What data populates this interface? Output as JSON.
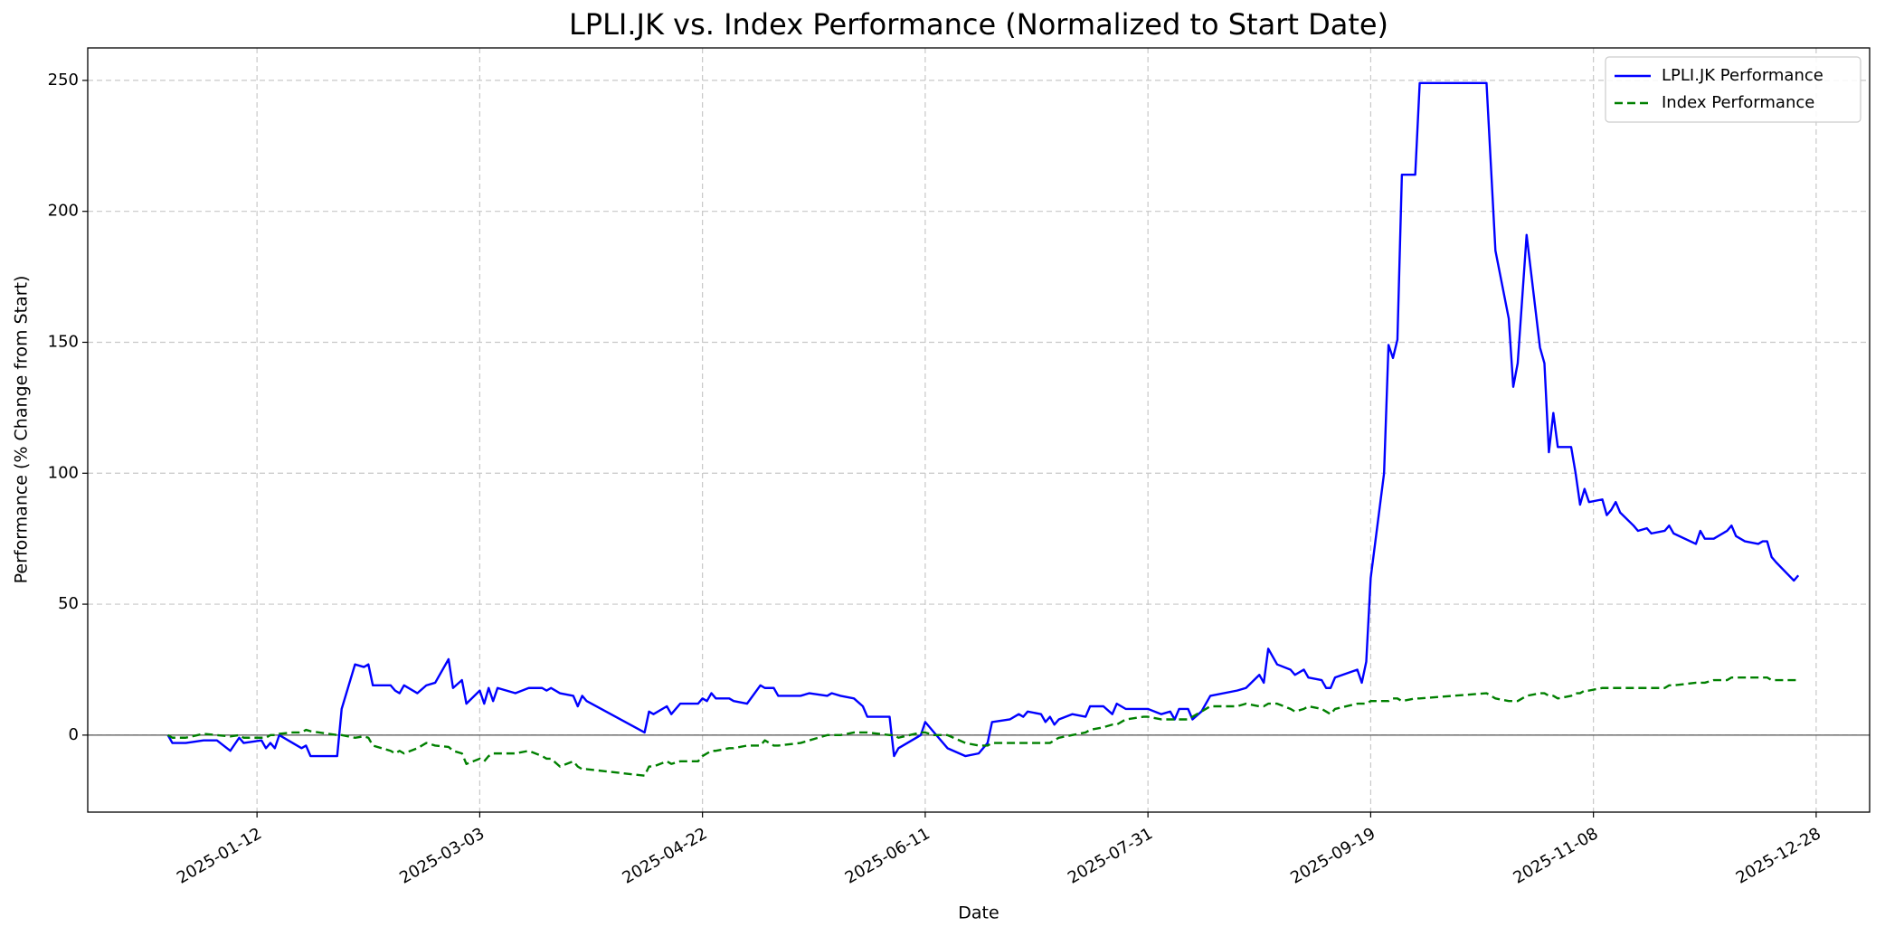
{
  "chart_data": {
    "type": "line",
    "title": "LPLI.JK vs. Index Performance (Normalized to Start Date)",
    "xlabel": "Date",
    "ylabel": "Performance (% Change from Start)",
    "x": [
      "2024-12-23",
      "2024-12-24",
      "2024-12-27",
      "2024-12-31",
      "2025-01-03",
      "2025-01-06",
      "2025-01-08",
      "2025-01-09",
      "2025-01-13",
      "2025-01-14",
      "2025-01-15",
      "2025-01-16",
      "2025-01-17",
      "2025-01-20",
      "2025-01-22",
      "2025-01-23",
      "2025-01-24",
      "2025-01-30",
      "2025-01-31",
      "2025-02-03",
      "2025-02-05",
      "2025-02-06",
      "2025-02-07",
      "2025-02-11",
      "2025-02-12",
      "2025-02-13",
      "2025-02-14",
      "2025-02-17",
      "2025-02-19",
      "2025-02-21",
      "2025-02-24",
      "2025-02-25",
      "2025-02-27",
      "2025-02-28",
      "2025-03-03",
      "2025-03-04",
      "2025-03-05",
      "2025-03-06",
      "2025-03-07",
      "2025-03-11",
      "2025-03-14",
      "2025-03-17",
      "2025-03-18",
      "2025-03-19",
      "2025-03-21",
      "2025-03-24",
      "2025-03-25",
      "2025-03-26",
      "2025-03-27",
      "2025-04-09",
      "2025-04-10",
      "2025-04-11",
      "2025-04-14",
      "2025-04-15",
      "2025-04-17",
      "2025-04-21",
      "2025-04-22",
      "2025-04-23",
      "2025-04-24",
      "2025-04-25",
      "2025-04-28",
      "2025-04-29",
      "2025-05-02",
      "2025-05-05",
      "2025-05-06",
      "2025-05-08",
      "2025-05-09",
      "2025-05-14",
      "2025-05-16",
      "2025-05-20",
      "2025-05-21",
      "2025-05-23",
      "2025-05-26",
      "2025-05-28",
      "2025-05-29",
      "2025-06-03",
      "2025-06-04",
      "2025-06-05",
      "2025-06-10",
      "2025-06-11",
      "2025-06-13",
      "2025-06-16",
      "2025-06-20",
      "2025-06-23",
      "2025-06-25",
      "2025-06-26",
      "2025-06-30",
      "2025-07-02",
      "2025-07-03",
      "2025-07-04",
      "2025-07-07",
      "2025-07-08",
      "2025-07-09",
      "2025-07-10",
      "2025-07-11",
      "2025-07-14",
      "2025-07-17",
      "2025-07-18",
      "2025-07-21",
      "2025-07-23",
      "2025-07-24",
      "2025-07-26",
      "2025-07-30",
      "2025-07-31",
      "2025-08-03",
      "2025-08-05",
      "2025-08-06",
      "2025-08-07",
      "2025-08-09",
      "2025-08-10",
      "2025-08-12",
      "2025-08-14",
      "2025-08-20",
      "2025-08-22",
      "2025-08-25",
      "2025-08-26",
      "2025-08-27",
      "2025-08-29",
      "2025-09-01",
      "2025-09-02",
      "2025-09-04",
      "2025-09-05",
      "2025-09-08",
      "2025-09-09",
      "2025-09-10",
      "2025-09-11",
      "2025-09-16",
      "2025-09-17",
      "2025-09-18",
      "2025-09-19",
      "2025-09-22",
      "2025-09-23",
      "2025-09-24",
      "2025-09-25",
      "2025-09-26",
      "2025-09-29",
      "2025-09-30",
      "2025-10-15",
      "2025-10-17",
      "2025-10-20",
      "2025-10-21",
      "2025-10-22",
      "2025-10-24",
      "2025-10-27",
      "2025-10-28",
      "2025-10-29",
      "2025-10-30",
      "2025-10-31",
      "2025-11-03",
      "2025-11-04",
      "2025-11-05",
      "2025-11-06",
      "2025-11-07",
      "2025-11-10",
      "2025-11-11",
      "2025-11-12",
      "2025-11-13",
      "2025-11-14",
      "2025-11-17",
      "2025-11-18",
      "2025-11-20",
      "2025-11-21",
      "2025-11-24",
      "2025-11-25",
      "2025-11-26",
      "2025-12-01",
      "2025-12-02",
      "2025-12-03",
      "2025-12-05",
      "2025-12-08",
      "2025-12-09",
      "2025-12-10",
      "2025-12-12",
      "2025-12-15",
      "2025-12-16",
      "2025-12-17",
      "2025-12-18",
      "2025-12-19",
      "2025-12-23",
      "2025-12-24"
    ],
    "series": [
      {
        "name": "LPLI.JK Performance",
        "color": "#0000ff",
        "dash": "solid",
        "values": [
          0,
          -3,
          -3,
          -2,
          -2,
          -6,
          -1,
          -3,
          -2,
          -5,
          -3,
          -5,
          0,
          -3,
          -5,
          -4,
          -8,
          -8,
          10,
          27,
          26,
          27,
          19,
          19,
          17,
          16,
          19,
          16,
          19,
          20,
          29,
          18,
          21,
          12,
          17,
          12,
          18,
          13,
          18,
          16,
          18,
          18,
          17,
          18,
          16,
          15,
          11,
          15,
          13,
          1,
          9,
          8,
          11,
          8,
          12,
          12,
          14,
          13,
          16,
          14,
          14,
          13,
          12,
          19,
          18,
          18,
          15,
          15,
          16,
          15,
          16,
          15,
          14,
          11,
          7,
          7,
          -8,
          -5,
          0,
          5,
          1,
          -5,
          -8,
          -7,
          -3,
          5,
          6,
          8,
          7,
          9,
          8,
          5,
          7,
          4,
          6,
          8,
          7,
          11,
          11,
          8,
          12,
          10,
          10,
          10,
          8,
          9,
          6,
          10,
          10,
          6,
          9,
          15,
          17,
          18,
          23,
          20,
          33,
          27,
          25,
          23,
          25,
          22,
          21,
          18,
          18,
          22,
          25,
          20,
          28,
          60,
          100,
          149,
          144,
          151,
          214,
          214,
          249,
          249,
          185,
          159,
          133,
          142,
          191,
          148,
          142,
          108,
          123,
          110,
          110,
          100,
          88,
          94,
          89,
          90,
          84,
          86,
          89,
          85,
          80,
          78,
          79,
          77,
          78,
          80,
          77,
          73,
          78,
          75,
          75,
          78,
          80,
          76,
          74,
          73,
          74,
          74,
          68,
          66,
          59,
          61
        ]
      },
      {
        "name": "Index Performance",
        "color": "#008000",
        "dash": "dashed",
        "values": [
          0,
          -1,
          -1,
          0.5,
          0,
          -0.5,
          0,
          -1,
          -1,
          -1,
          0,
          0,
          0.5,
          1,
          1,
          2,
          1.5,
          0,
          0,
          -1,
          -0.5,
          -1,
          -4,
          -6,
          -7,
          -6,
          -7,
          -5,
          -3,
          -4,
          -4.5,
          -6,
          -7,
          -11,
          -9,
          -10,
          -8,
          -7,
          -7,
          -7,
          -6,
          -8,
          -9,
          -9,
          -12,
          -10,
          -12,
          -13,
          -13,
          -15.5,
          -12,
          -12,
          -10,
          -11,
          -10,
          -10,
          -8,
          -7,
          -6,
          -6,
          -5,
          -5,
          -4,
          -4,
          -2,
          -4,
          -4,
          -3,
          -2,
          0,
          0,
          0,
          1,
          1,
          1,
          0,
          0,
          -1,
          1,
          1,
          0,
          0,
          -3,
          -4,
          -4,
          -3,
          -3,
          -3,
          -3,
          -3,
          -3,
          -3,
          -3,
          -2,
          -1,
          0,
          1,
          2,
          3,
          4,
          4,
          6,
          7,
          7,
          6,
          6,
          6,
          6,
          6,
          7,
          9,
          11,
          11,
          12,
          11,
          11,
          12,
          12,
          10,
          9,
          10,
          11,
          10,
          9,
          8,
          10,
          12,
          12,
          12,
          13,
          13,
          13,
          14,
          14,
          13,
          14,
          14,
          16,
          14,
          13,
          13,
          13,
          15,
          16,
          16,
          15,
          15,
          14,
          15,
          16,
          16,
          17,
          17,
          18,
          18,
          18,
          18,
          18,
          18,
          18,
          18,
          18,
          18,
          19,
          19,
          20,
          20,
          20,
          21,
          21,
          22,
          22,
          22,
          22,
          22,
          22,
          21,
          21,
          21,
          21
        ]
      }
    ],
    "xlim": [
      "2024-12-05",
      "2026-01-09"
    ],
    "xticks": [
      "2025-01-12",
      "2025-03-03",
      "2025-04-22",
      "2025-06-11",
      "2025-07-31",
      "2025-09-19",
      "2025-11-08",
      "2025-12-28"
    ],
    "ylim": [
      -29.4,
      262.4
    ],
    "yticks": [
      0,
      50,
      100,
      150,
      200,
      250
    ],
    "hline": 0,
    "grid": true,
    "legend": "upper right"
  }
}
